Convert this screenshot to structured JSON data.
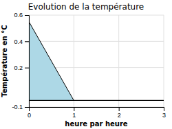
{
  "chart_data": {
    "type": "area",
    "title": "Evolution de la température",
    "xlabel": "heure par heure",
    "ylabel": "Température en °C",
    "x": [
      0,
      1
    ],
    "values": [
      0.55,
      -0.05
    ],
    "baseline": -0.05,
    "color": "#add8e6",
    "xlim": [
      0,
      3
    ],
    "ylim": [
      -0.1,
      0.6
    ],
    "xticks": [
      0,
      1,
      2,
      3
    ],
    "yticks": [
      -0.1,
      0.2,
      0.4,
      0.6
    ],
    "grid": true
  }
}
